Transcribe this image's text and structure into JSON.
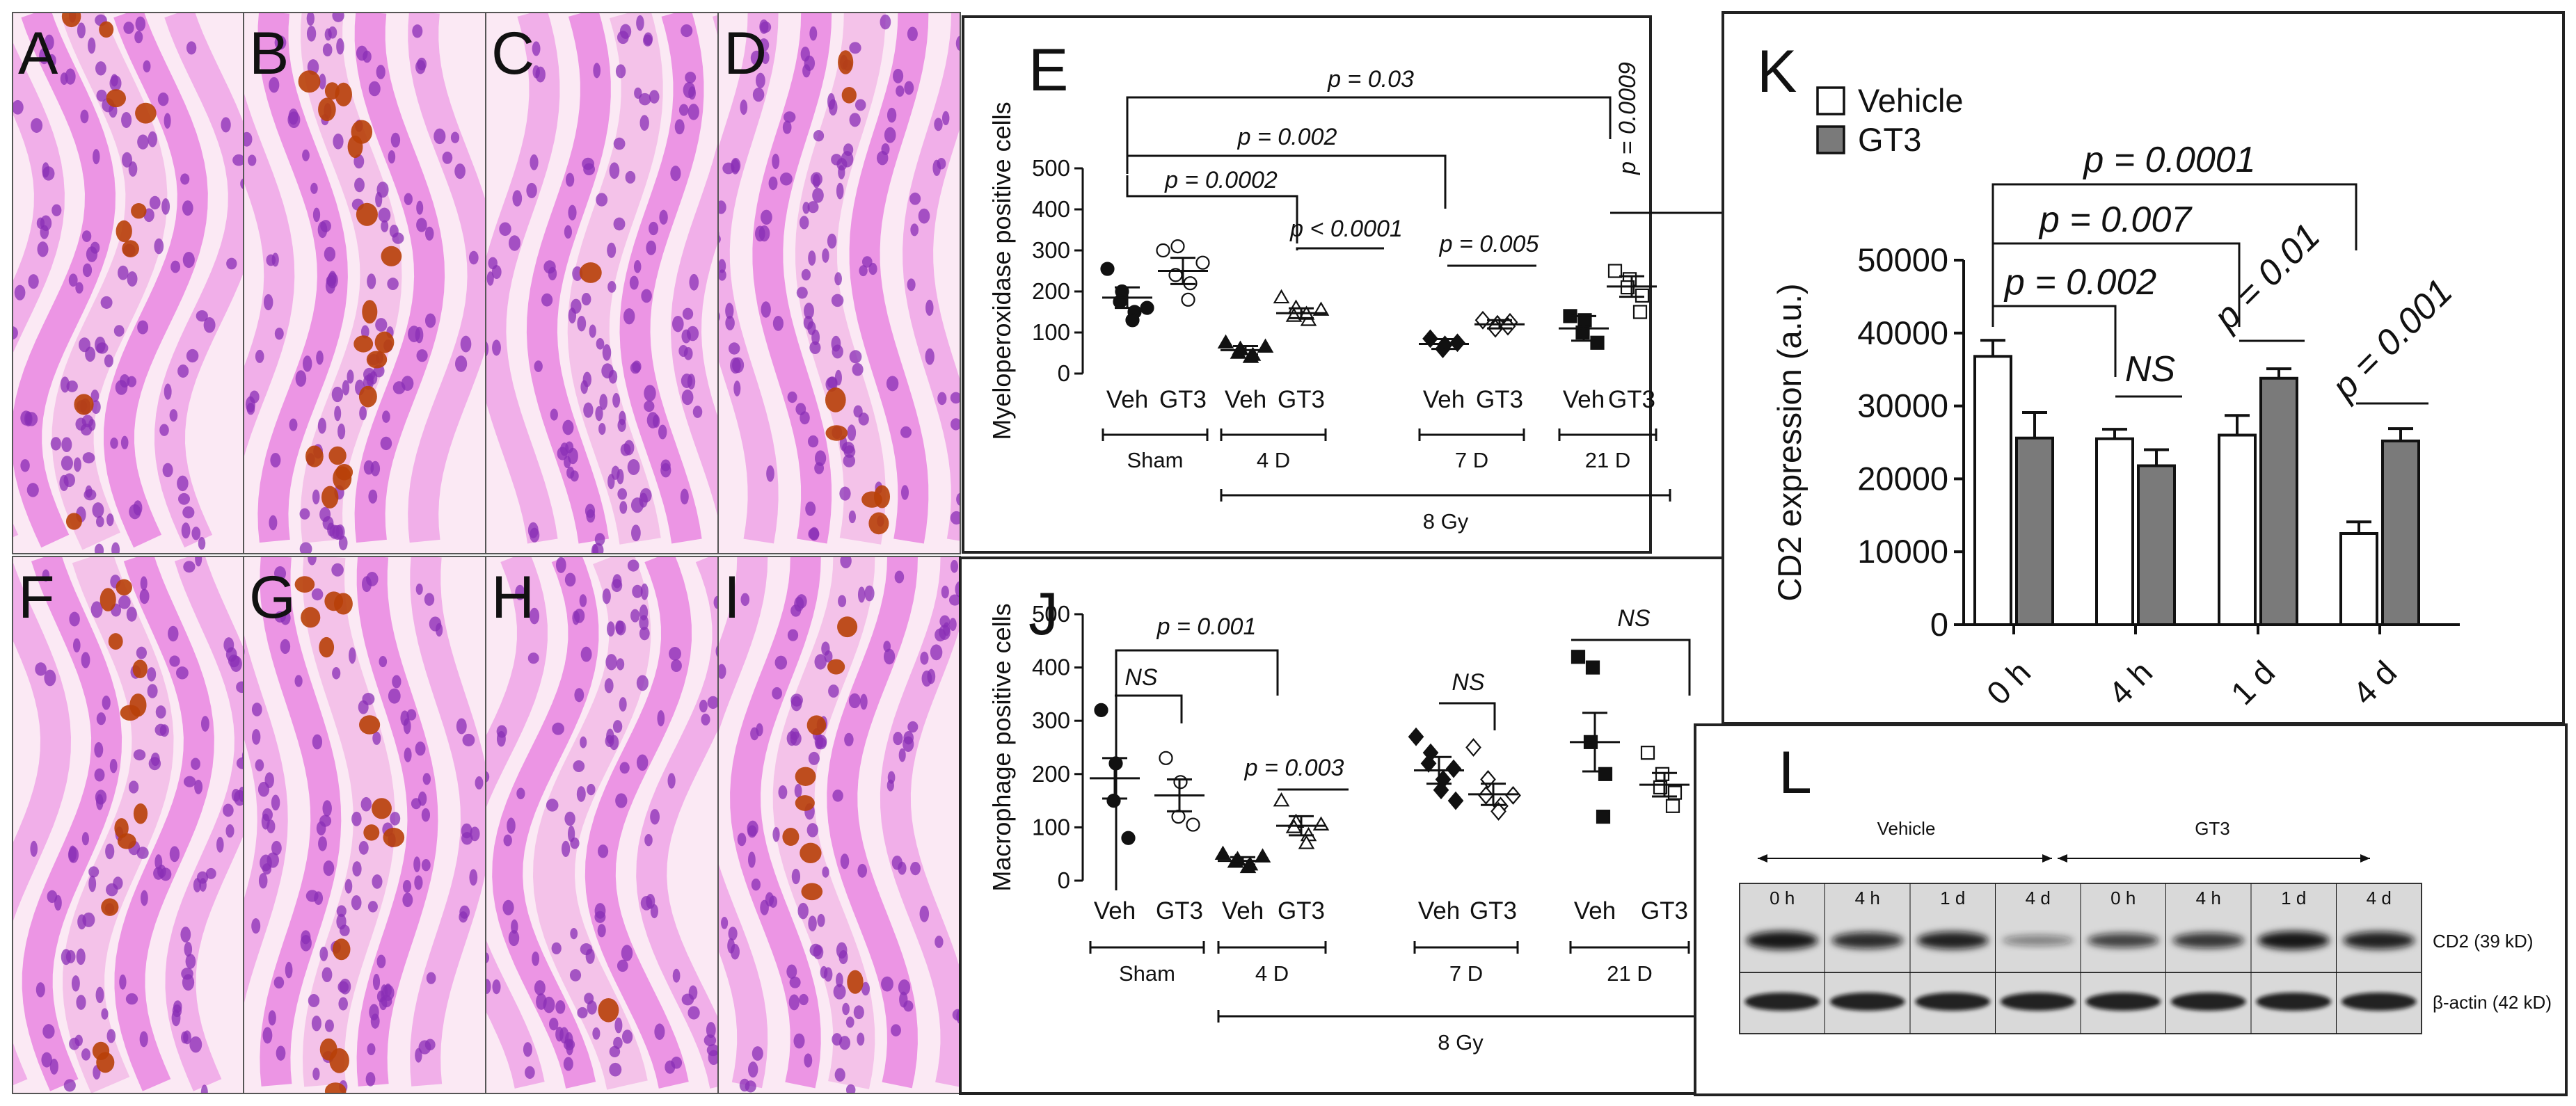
{
  "panel_labels": {
    "A": "A",
    "B": "B",
    "C": "C",
    "D": "D",
    "F": "F",
    "G": "G",
    "H": "H",
    "I": "I",
    "E": "E",
    "J": "J",
    "K": "K",
    "L": "L"
  },
  "colors": {
    "stain_pink": "#e97fe0",
    "nuclei": "#8a2fb5",
    "positive": "#b84008",
    "bar_gt3": "#7a7a7a",
    "bar_vehicle": "#ffffff"
  },
  "chart_data": [
    {
      "id": "E",
      "type": "scatter",
      "ylabel": "Myeloperoxidase positive cells",
      "ylim": [
        0,
        500
      ],
      "yticks": [
        0,
        100,
        200,
        300,
        400,
        500
      ],
      "categories": [
        "Veh",
        "GT3",
        "Veh",
        "GT3",
        "Veh",
        "GT3",
        "Veh",
        "GT3"
      ],
      "groups": [
        "Sham",
        "4 D",
        "7 D",
        "21 D"
      ],
      "dose_label": "8 Gy",
      "series": [
        {
          "name": "Sham Veh",
          "marker": "circle",
          "filled": true,
          "values": [
            255,
            200,
            175,
            150,
            130,
            160
          ],
          "mean": 185,
          "sem": 25
        },
        {
          "name": "Sham GT3",
          "marker": "circle",
          "filled": false,
          "values": [
            300,
            310,
            240,
            220,
            180,
            270
          ],
          "mean": 250,
          "sem": 32
        },
        {
          "name": "4 D Veh",
          "marker": "triangle",
          "filled": true,
          "values": [
            75,
            60,
            50,
            45,
            40,
            65
          ],
          "mean": 57,
          "sem": 10
        },
        {
          "name": "4 D GT3",
          "marker": "triangle",
          "filled": false,
          "values": [
            185,
            160,
            140,
            130,
            145,
            155
          ],
          "mean": 147,
          "sem": 12
        },
        {
          "name": "7 D Veh",
          "marker": "diamond",
          "filled": true,
          "values": [
            85,
            70,
            60,
            75
          ],
          "mean": 72,
          "sem": 12
        },
        {
          "name": "7 D GT3",
          "marker": "diamond",
          "filled": false,
          "values": [
            130,
            120,
            110,
            125,
            115
          ],
          "mean": 120,
          "sem": 10
        },
        {
          "name": "21 D Veh",
          "marker": "square",
          "filled": true,
          "values": [
            140,
            130,
            100,
            75
          ],
          "mean": 110,
          "sem": 30
        },
        {
          "name": "21 D GT3",
          "marker": "square",
          "filled": false,
          "values": [
            250,
            230,
            210,
            190,
            150
          ],
          "mean": 212,
          "sem": 25
        }
      ],
      "annotations": [
        "p = 0.03",
        "p = 0.002",
        "p = 0.0002",
        "p < 0.0001",
        "p = 0.005",
        "p = 0.0009"
      ]
    },
    {
      "id": "J",
      "type": "scatter",
      "ylabel": "Macrophage positive cells",
      "ylim": [
        0,
        500
      ],
      "yticks": [
        0,
        100,
        200,
        300,
        400,
        500
      ],
      "categories": [
        "Veh",
        "GT3",
        "Veh",
        "GT3",
        "Veh",
        "GT3",
        "Veh",
        "GT3"
      ],
      "groups": [
        "Sham",
        "4 D",
        "7 D",
        "21 D"
      ],
      "dose_label": "8 Gy",
      "series": [
        {
          "name": "Sham Veh",
          "marker": "circle",
          "filled": true,
          "values": [
            320,
            220,
            150,
            80
          ],
          "mean": 192,
          "sem": 38
        },
        {
          "name": "Sham GT3",
          "marker": "circle",
          "filled": false,
          "values": [
            230,
            185,
            120,
            105
          ],
          "mean": 160,
          "sem": 30
        },
        {
          "name": "4 D Veh",
          "marker": "triangle",
          "filled": true,
          "values": [
            50,
            40,
            35,
            30,
            25,
            45
          ],
          "mean": 37,
          "sem": 7
        },
        {
          "name": "4 D GT3",
          "marker": "triangle",
          "filled": false,
          "values": [
            150,
            110,
            100,
            85,
            70,
            105
          ],
          "mean": 103,
          "sem": 18
        },
        {
          "name": "7 D Veh",
          "marker": "diamond",
          "filled": true,
          "values": [
            270,
            240,
            220,
            190,
            170,
            150,
            210
          ],
          "mean": 207,
          "sem": 25
        },
        {
          "name": "7 D GT3",
          "marker": "diamond",
          "filled": false,
          "values": [
            250,
            190,
            160,
            140,
            130,
            160
          ],
          "mean": 162,
          "sem": 20
        },
        {
          "name": "21 D Veh",
          "marker": "square",
          "filled": true,
          "values": [
            420,
            400,
            260,
            200,
            120
          ],
          "mean": 260,
          "sem": 55
        },
        {
          "name": "21 D GT3",
          "marker": "square",
          "filled": false,
          "values": [
            240,
            200,
            175,
            165,
            140
          ],
          "mean": 180,
          "sem": 22
        }
      ],
      "annotations": [
        "p = 0.001",
        "NS",
        "p = 0.003",
        "NS",
        "NS"
      ]
    },
    {
      "id": "K",
      "type": "bar",
      "ylabel": "CD2 expression (a.u.)",
      "ylim": [
        0,
        50000
      ],
      "yticks": [
        0,
        10000,
        20000,
        30000,
        40000,
        50000
      ],
      "categories": [
        "0 h",
        "4 h",
        "1 d",
        "4 d"
      ],
      "legend": {
        "position": "top-left",
        "entries": [
          "Vehicle",
          "GT3"
        ]
      },
      "series": [
        {
          "name": "Vehicle",
          "values": [
            36800,
            25500,
            26000,
            12500
          ],
          "errors": [
            2200,
            1300,
            2700,
            1600
          ]
        },
        {
          "name": "GT3",
          "values": [
            25600,
            21800,
            33800,
            25200
          ],
          "errors": [
            3500,
            2200,
            1300,
            1700
          ]
        }
      ],
      "annotations": [
        "p = 0.0001",
        "p = 0.007",
        "p = 0.002",
        "NS",
        "p = 0.01",
        "p = 0.001"
      ]
    }
  ],
  "blot": {
    "group_vehicle": "Vehicle",
    "group_gt3": "GT3",
    "lanes": [
      "0 h",
      "4 h",
      "1 d",
      "4 d",
      "0 h",
      "4 h",
      "1 d",
      "4 d"
    ],
    "cd2_label": "CD2 (39 kD)",
    "actin_label": "β-actin (42 kD)",
    "cd2_intensity": [
      0.95,
      0.85,
      0.9,
      0.45,
      0.75,
      0.8,
      0.95,
      0.9
    ],
    "actin_intensity": [
      0.9,
      0.9,
      0.9,
      0.9,
      0.9,
      0.9,
      0.9,
      0.9
    ]
  }
}
